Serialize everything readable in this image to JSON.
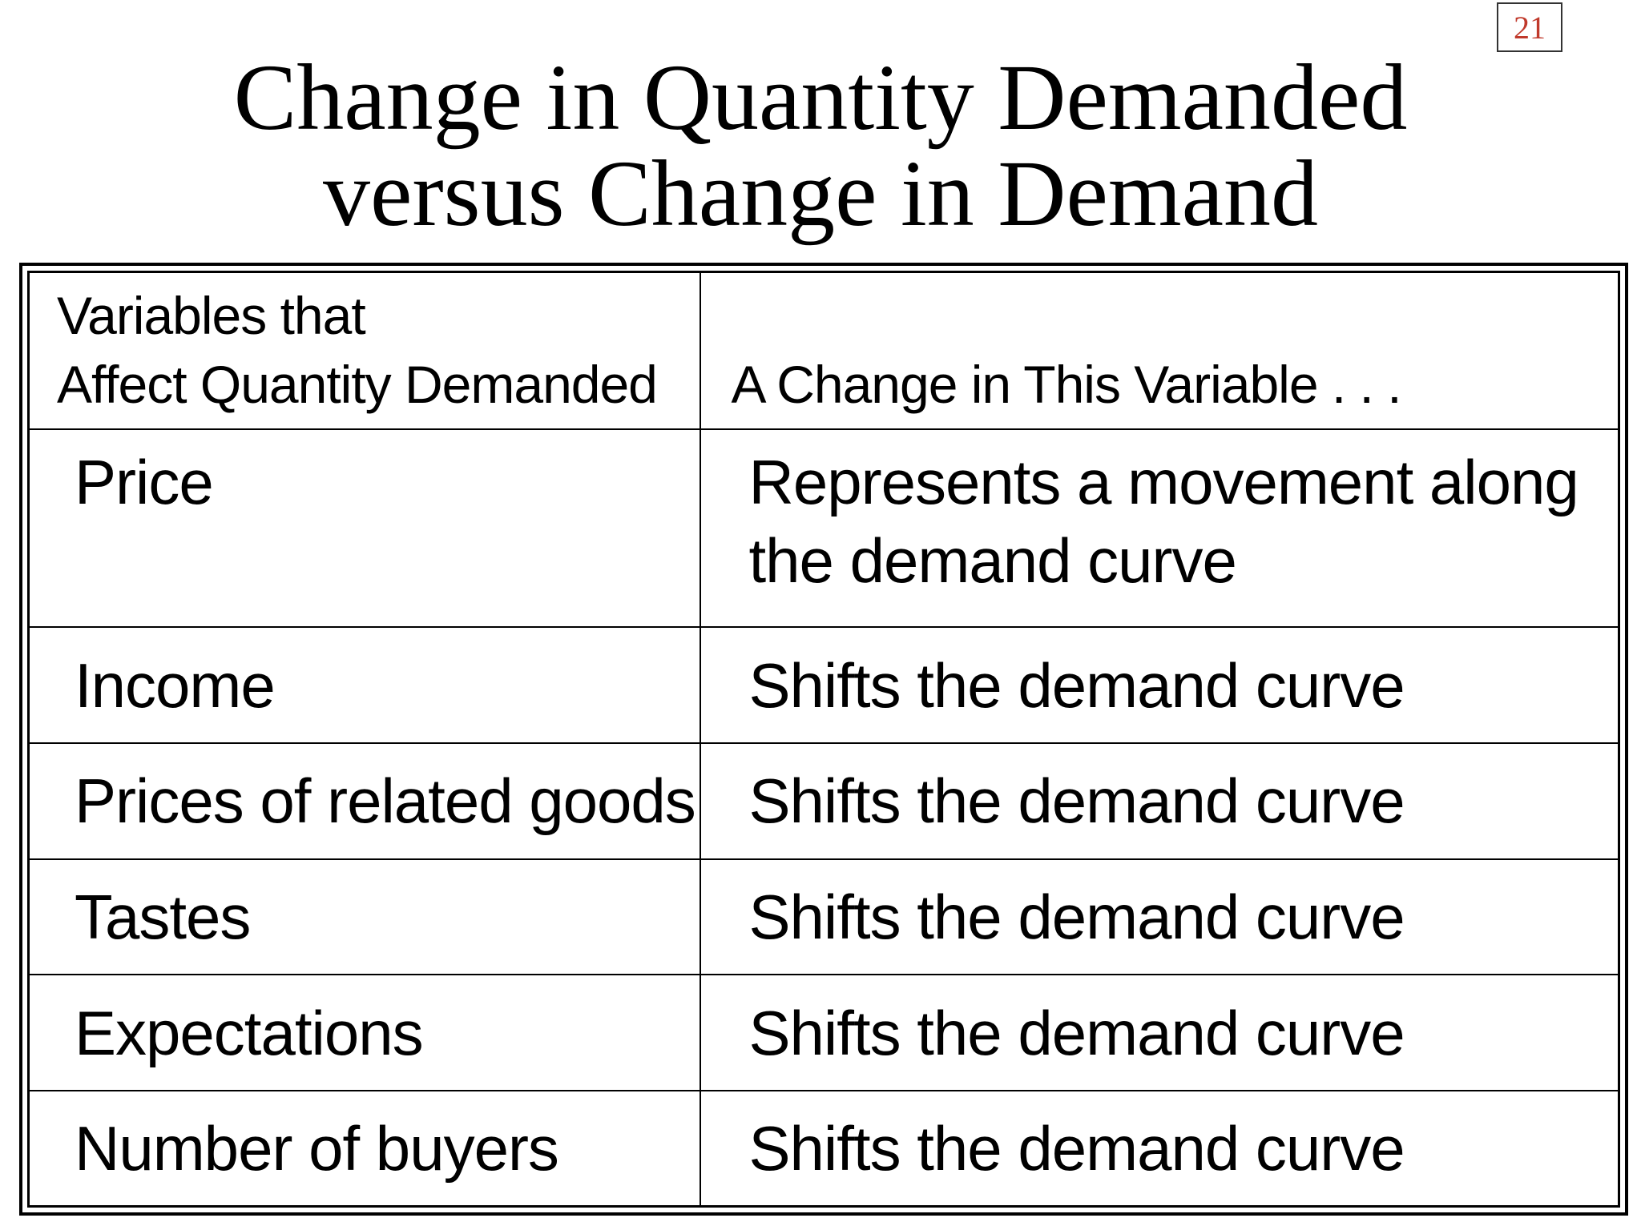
{
  "page_number": "21",
  "title": {
    "line1": "Change in Quantity Demanded",
    "line2": "versus Change in Demand"
  },
  "table": {
    "header": {
      "col1_line1": "Variables that",
      "col1_line2": "Affect Quantity Demanded",
      "col2": "A Change in This Variable . . ."
    },
    "rows": [
      {
        "variable": "Price",
        "effect_line1": "Represents a movement along",
        "effect_line2": "the demand curve"
      },
      {
        "variable": "Income",
        "effect": "Shifts the demand curve"
      },
      {
        "variable": "Prices of related goods",
        "effect": "Shifts the demand curve"
      },
      {
        "variable": "Tastes",
        "effect": "Shifts the demand curve"
      },
      {
        "variable": "Expectations",
        "effect": "Shifts the demand curve"
      },
      {
        "variable": "Number of buyers",
        "effect": "Shifts the demand curve"
      }
    ]
  }
}
